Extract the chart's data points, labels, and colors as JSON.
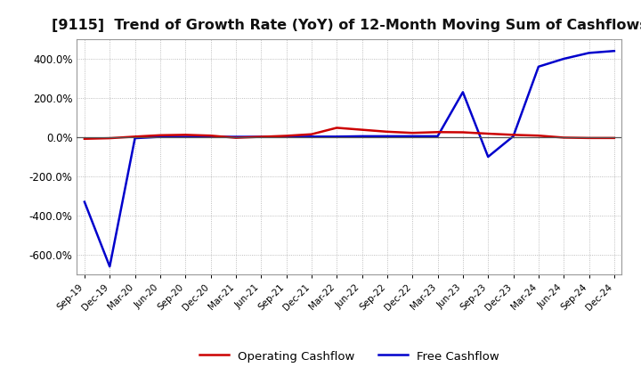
{
  "title": "[9115]  Trend of Growth Rate (YoY) of 12-Month Moving Sum of Cashflows",
  "title_fontsize": 11.5,
  "background_color": "#ffffff",
  "plot_bg_color": "#ffffff",
  "grid_color": "#888888",
  "ylim": [
    -700,
    500
  ],
  "yticks": [
    -600,
    -400,
    -200,
    0,
    200,
    400
  ],
  "ytick_labels": [
    "-600.0%",
    "-400.0%",
    "-200.0%",
    "0.0%",
    "200.0%",
    "400.0%"
  ],
  "x_labels": [
    "Sep-19",
    "Dec-19",
    "Mar-20",
    "Jun-20",
    "Sep-20",
    "Dec-20",
    "Mar-21",
    "Jun-21",
    "Sep-21",
    "Dec-21",
    "Mar-22",
    "Jun-22",
    "Sep-22",
    "Dec-22",
    "Mar-23",
    "Jun-23",
    "Sep-23",
    "Dec-23",
    "Mar-24",
    "Jun-24",
    "Sep-24",
    "Dec-24"
  ],
  "operating_cashflow": [
    -8,
    -5,
    3,
    10,
    12,
    8,
    -3,
    2,
    7,
    15,
    48,
    38,
    28,
    22,
    26,
    25,
    18,
    12,
    8,
    -2,
    -4,
    -4
  ],
  "free_cashflow": [
    -330,
    -660,
    -5,
    2,
    2,
    2,
    2,
    2,
    2,
    3,
    3,
    5,
    5,
    5,
    5,
    230,
    -100,
    5,
    360,
    400,
    430,
    440
  ],
  "op_color": "#cc0000",
  "free_color": "#0000cc",
  "legend_labels": [
    "Operating Cashflow",
    "Free Cashflow"
  ],
  "line_width": 1.8,
  "figsize": [
    7.2,
    4.4
  ],
  "dpi": 100
}
